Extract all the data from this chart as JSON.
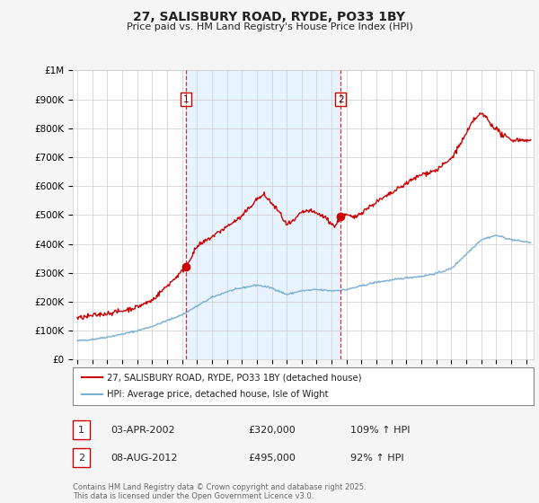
{
  "title": "27, SALISBURY ROAD, RYDE, PO33 1BY",
  "subtitle": "Price paid vs. HM Land Registry's House Price Index (HPI)",
  "ylabel_ticks": [
    "£0",
    "£100K",
    "£200K",
    "£300K",
    "£400K",
    "£500K",
    "£600K",
    "£700K",
    "£800K",
    "£900K",
    "£1M"
  ],
  "ylim": [
    0,
    1000000
  ],
  "xlim_start": 1994.7,
  "xlim_end": 2025.5,
  "sale1_date": 2002.25,
  "sale1_price": 320000,
  "sale1_label": "1",
  "sale1_pct": "109% ↑ HPI",
  "sale1_date_str": "03-APR-2002",
  "sale2_date": 2012.6,
  "sale2_price": 495000,
  "sale2_label": "2",
  "sale2_pct": "92% ↑ HPI",
  "sale2_date_str": "08-AUG-2012",
  "legend_line1": "27, SALISBURY ROAD, RYDE, PO33 1BY (detached house)",
  "legend_line2": "HPI: Average price, detached house, Isle of Wight",
  "footer": "Contains HM Land Registry data © Crown copyright and database right 2025.\nThis data is licensed under the Open Government Licence v3.0.",
  "line_color_red": "#cc0000",
  "line_color_blue": "#7ab0d4",
  "shade_color": "#ddeeff",
  "background_color": "#f5f5f5",
  "plot_bg_color": "#ffffff",
  "grid_color": "#cccccc",
  "vline_color": "#cc0000",
  "annotation_box_color": "#cc0000"
}
